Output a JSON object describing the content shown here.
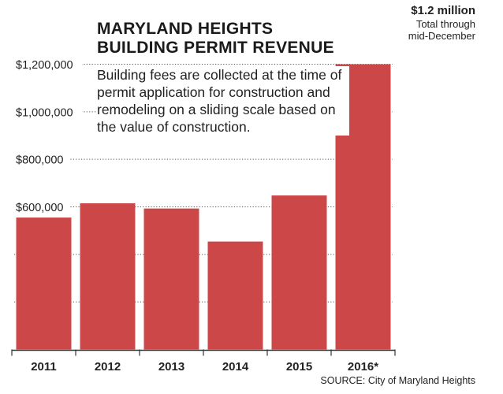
{
  "chart_data": {
    "type": "bar",
    "title": "MARYLAND HEIGHTS BUILDING PERMIT REVENUE",
    "title_lines": [
      "MARYLAND HEIGHTS",
      "BUILDING PERMIT REVENUE"
    ],
    "subtitle": "Building fees are collected at the time of permit application for construction and remodeling on a sliding scale based on the value of construction.",
    "categories": [
      "2011",
      "2012",
      "2013",
      "2014",
      "2015",
      "2016*"
    ],
    "values": [
      555000,
      615000,
      593000,
      454000,
      648000,
      1200000
    ],
    "xlabel": "",
    "ylabel": "",
    "ylim": [
      0,
      1200000
    ],
    "yticks": [
      0,
      200000,
      400000,
      600000,
      800000,
      1000000,
      1200000
    ],
    "ytick_labels": [
      "",
      "",
      "",
      "$600,000",
      "$800,000",
      "$1,000,000",
      "$1,200,000"
    ],
    "grid": "dotted horizontal",
    "bar_color": "#cc4848",
    "annotation": {
      "value": "$1.2 million",
      "line1": "Total through",
      "line2": "mid-December"
    },
    "source": "SOURCE: City of Maryland Heights"
  }
}
